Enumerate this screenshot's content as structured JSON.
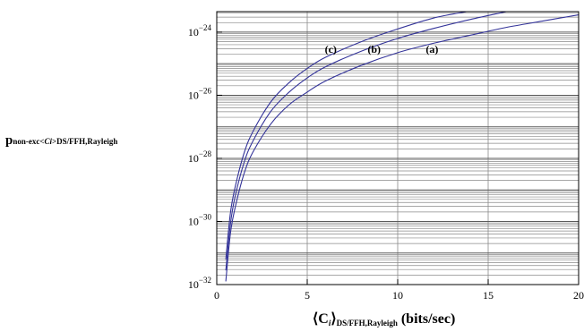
{
  "chart_data": {
    "type": "line",
    "ylabel": {
      "main": "p",
      "sub_prefix": "non-exc<",
      "sub_ci": "Ci",
      "sub_suffix": ">DS/FFH,Rayleigh"
    },
    "xlabel": {
      "open": "⟨",
      "c": "C",
      "i": "i",
      "close": "⟩",
      "sub": "DS/FFH,Rayleigh",
      "units": " (bits/sec)"
    },
    "xlim": [
      0,
      20
    ],
    "ylim_log10": [
      -32,
      -23.35
    ],
    "x_ticks": [
      0,
      5,
      10,
      15,
      20
    ],
    "x_tick_labels": [
      "0",
      "5",
      "10",
      "15",
      "20"
    ],
    "y_ticks_log10": [
      -32,
      -30,
      -28,
      -26,
      -24
    ],
    "y_tick_labels": [
      {
        "base": "10",
        "exp": "−32"
      },
      {
        "base": "10",
        "exp": "−30"
      },
      {
        "base": "10",
        "exp": "−28"
      },
      {
        "base": "10",
        "exp": "−26"
      },
      {
        "base": "10",
        "exp": "−24"
      }
    ],
    "y_scale": "log",
    "grid": true,
    "series": [
      {
        "name": "(a)",
        "color": "#333399",
        "x": [
          0.5,
          0.75,
          1,
          1.5,
          2,
          3,
          4,
          5,
          6,
          8,
          10,
          12,
          14,
          16,
          18,
          20
        ],
        "y_log10": [
          -31.9,
          -30.4,
          -29.6,
          -28.5,
          -27.8,
          -26.9,
          -26.3,
          -25.9,
          -25.55,
          -25.05,
          -24.65,
          -24.35,
          -24.1,
          -23.85,
          -23.65,
          -23.45
        ]
      },
      {
        "name": "(b)",
        "color": "#333399",
        "x": [
          0.5,
          0.75,
          1,
          1.5,
          2,
          3,
          4,
          5,
          6,
          8,
          10,
          12,
          14,
          16
        ],
        "y_log10": [
          -31.55,
          -30.1,
          -29.25,
          -28.15,
          -27.45,
          -26.5,
          -25.9,
          -25.45,
          -25.1,
          -24.6,
          -24.2,
          -23.88,
          -23.6,
          -23.35
        ]
      },
      {
        "name": "(c)",
        "color": "#333399",
        "x": [
          0.5,
          0.75,
          1,
          1.5,
          2,
          3,
          4,
          5,
          6,
          8,
          10,
          12,
          13.8
        ],
        "y_log10": [
          -31.2,
          -29.75,
          -28.95,
          -27.85,
          -27.15,
          -26.2,
          -25.6,
          -25.15,
          -24.8,
          -24.3,
          -23.9,
          -23.55,
          -23.35
        ]
      }
    ],
    "annotations": [
      {
        "text": "(a)",
        "x": 11.9,
        "y_log10": -24.65
      },
      {
        "text": "(b)",
        "x": 8.7,
        "y_log10": -24.65
      },
      {
        "text": "(c)",
        "x": 6.3,
        "y_log10": -24.65
      }
    ]
  }
}
